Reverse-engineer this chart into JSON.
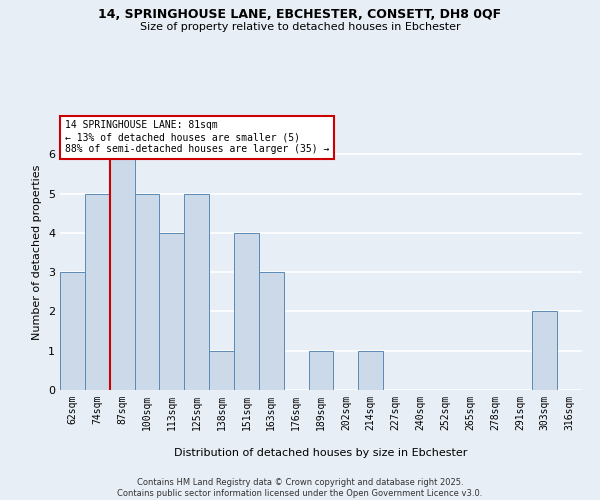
{
  "title": "14, SPRINGHOUSE LANE, EBCHESTER, CONSETT, DH8 0QF",
  "subtitle": "Size of property relative to detached houses in Ebchester",
  "xlabel": "Distribution of detached houses by size in Ebchester",
  "ylabel": "Number of detached properties",
  "categories": [
    "62sqm",
    "74sqm",
    "87sqm",
    "100sqm",
    "113sqm",
    "125sqm",
    "138sqm",
    "151sqm",
    "163sqm",
    "176sqm",
    "189sqm",
    "202sqm",
    "214sqm",
    "227sqm",
    "240sqm",
    "252sqm",
    "265sqm",
    "278sqm",
    "291sqm",
    "303sqm",
    "316sqm"
  ],
  "values": [
    3,
    5,
    6,
    5,
    4,
    5,
    1,
    4,
    3,
    0,
    1,
    0,
    1,
    0,
    0,
    0,
    0,
    0,
    0,
    2,
    0
  ],
  "bar_color": "#ccd9e8",
  "bar_edge_color": "#5b8ab5",
  "red_line_x": 1.5,
  "marker_label_line1": "14 SPRINGHOUSE LANE: 81sqm",
  "marker_label_line2": "← 13% of detached houses are smaller (5)",
  "marker_label_line3": "88% of semi-detached houses are larger (35) →",
  "ylim": [
    0,
    7
  ],
  "yticks": [
    0,
    1,
    2,
    3,
    4,
    5,
    6
  ],
  "background_color": "#e8eef5",
  "grid_color": "#ffffff",
  "footnote": "Contains HM Land Registry data © Crown copyright and database right 2025.\nContains public sector information licensed under the Open Government Licence v3.0.",
  "red_line_color": "#cc0000",
  "annotation_box_facecolor": "#ffffff",
  "annotation_box_edgecolor": "#cc0000",
  "title_fontsize": 9,
  "subtitle_fontsize": 8,
  "axis_label_fontsize": 8,
  "tick_fontsize": 7,
  "annotation_fontsize": 7
}
